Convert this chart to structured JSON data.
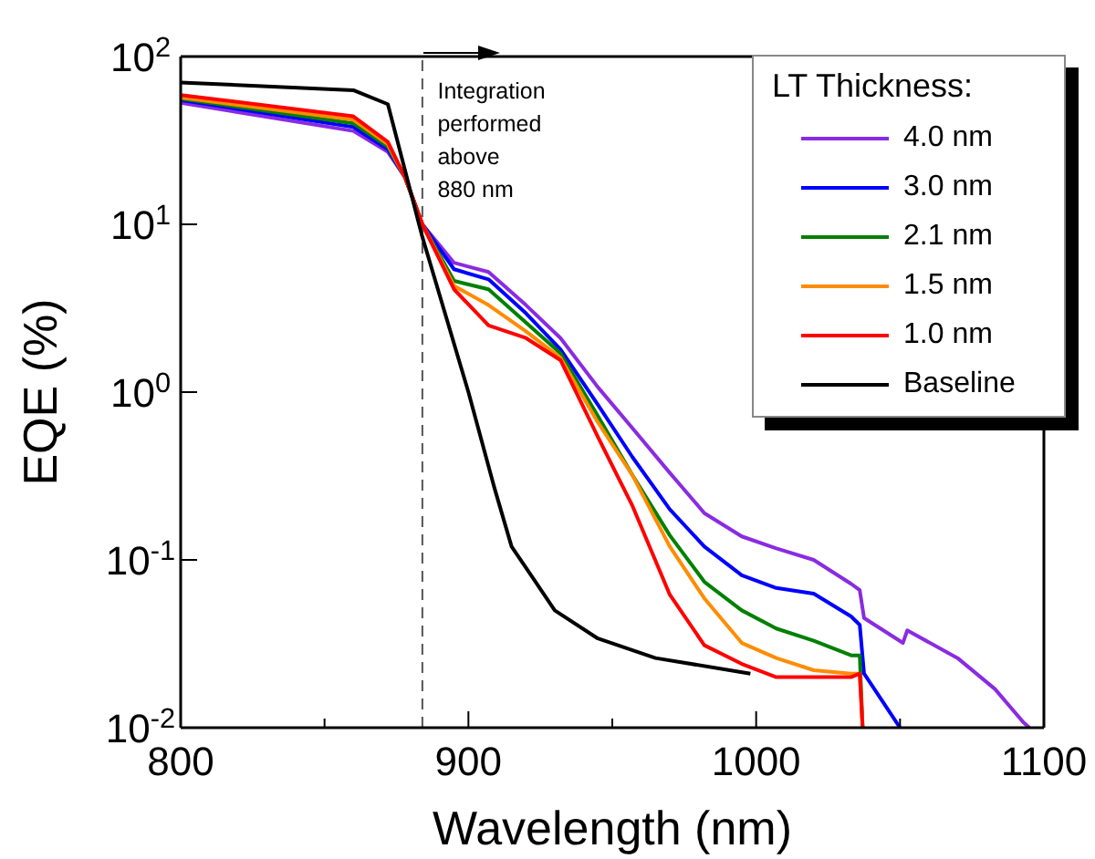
{
  "chart_data": {
    "type": "line",
    "xlabel": "Wavelength (nm)",
    "ylabel": "EQE (%)",
    "legend_title": "LT Thickness:",
    "legend": "top right",
    "log": "y",
    "grid": false,
    "marker": "none",
    "line_style": "solid",
    "xlim": [
      800,
      1100
    ],
    "xticks": [
      800,
      {
        "value": 850,
        "label": null
      },
      900,
      {
        "value": 950,
        "label": null
      },
      1000,
      {
        "value": 1050,
        "label": null
      },
      1100
    ],
    "ylim": [
      0.01,
      100
    ],
    "yticks": [
      {
        "value": 0.01,
        "label": "10$^{-2}$"
      },
      {
        "value": 0.1,
        "label": "10$^{-1}$"
      },
      {
        "value": 1,
        "label": "10$^{0}$"
      },
      {
        "value": 10,
        "label": "10$^{1}$"
      },
      {
        "value": 100,
        "label": "10$^{2}$"
      }
    ],
    "ref_lines": [
      {
        "axis": "x",
        "value": 884,
        "label": null,
        "color": "#555555",
        "line_style": "dashed"
      }
    ],
    "annotations": [
      "Integration\nperformed\nabove\n880 nm"
    ],
    "series": [
      {
        "name": "4.0 nm",
        "color": "#8a2be2",
        "x": [
          800,
          860,
          872,
          878,
          884,
          895,
          907,
          920,
          932,
          945,
          957,
          970,
          982,
          995,
          1007,
          1020,
          1033,
          1036,
          1037.5,
          1051,
          1052.5,
          1070,
          1083,
          1093,
          1095
        ],
        "values": [
          53,
          36,
          27,
          19,
          10,
          5.9,
          5.2,
          3.3,
          2.1,
          1.07,
          0.61,
          0.33,
          0.19,
          0.138,
          0.117,
          0.1,
          0.072,
          0.066,
          0.045,
          0.032,
          0.038,
          0.026,
          0.017,
          0.0107,
          0.01
        ]
      },
      {
        "name": "3.0 nm",
        "color": "#0000ff",
        "x": [
          800,
          860,
          872,
          878,
          884,
          895,
          907,
          920,
          932,
          945,
          957,
          970,
          982,
          995,
          1007,
          1020,
          1033,
          1036,
          1037.5,
          1050
        ],
        "values": [
          55,
          38,
          28,
          19,
          10,
          5.4,
          4.7,
          2.95,
          1.8,
          0.84,
          0.41,
          0.2,
          0.12,
          0.081,
          0.068,
          0.063,
          0.046,
          0.041,
          0.021,
          0.01
        ]
      },
      {
        "name": "2.1 nm",
        "color": "#008000",
        "x": [
          800,
          860,
          872,
          878,
          884,
          895,
          907,
          920,
          932,
          945,
          957,
          970,
          982,
          995,
          1007,
          1020,
          1033,
          1036,
          1037
        ],
        "values": [
          56,
          40,
          29,
          19,
          10,
          4.6,
          4.1,
          2.6,
          1.7,
          0.72,
          0.32,
          0.14,
          0.074,
          0.05,
          0.039,
          0.033,
          0.027,
          0.027,
          0.01
        ]
      },
      {
        "name": "1.5 nm",
        "color": "#ff8c00",
        "x": [
          800,
          860,
          872,
          878,
          884,
          895,
          907,
          920,
          932,
          945,
          957,
          970,
          982,
          995,
          1007,
          1020,
          1033,
          1036,
          1037
        ],
        "values": [
          57,
          42,
          30,
          19,
          10,
          4.3,
          3.3,
          2.3,
          1.6,
          0.66,
          0.32,
          0.12,
          0.059,
          0.032,
          0.026,
          0.022,
          0.021,
          0.021,
          0.01
        ]
      },
      {
        "name": "1.0 nm",
        "color": "#ff0000",
        "x": [
          800,
          860,
          872,
          878,
          884,
          895,
          907,
          920,
          932,
          945,
          957,
          970,
          982,
          995,
          1007,
          1020,
          1033,
          1036,
          1037
        ],
        "values": [
          59,
          44,
          31,
          19,
          10,
          4.1,
          2.5,
          2.1,
          1.55,
          0.54,
          0.21,
          0.062,
          0.031,
          0.024,
          0.02,
          0.02,
          0.02,
          0.021,
          0.01
        ]
      },
      {
        "name": "Baseline",
        "color": "#000000",
        "x": [
          800,
          860,
          872,
          884,
          900,
          909,
          915,
          922,
          930,
          945,
          965,
          998
        ],
        "values": [
          70,
          63,
          52,
          8.4,
          1.0,
          0.27,
          0.12,
          0.08,
          0.05,
          0.034,
          0.026,
          0.021
        ]
      }
    ]
  }
}
